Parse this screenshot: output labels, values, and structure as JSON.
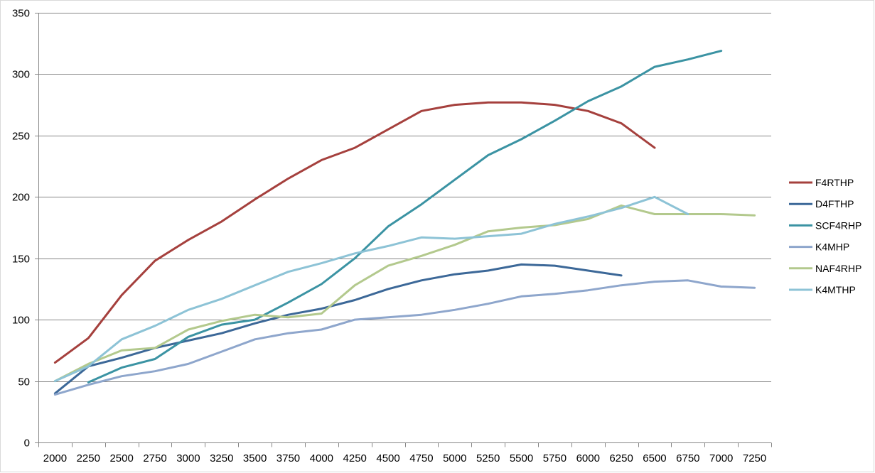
{
  "chart_data": {
    "type": "line",
    "title": "",
    "xlabel": "",
    "ylabel": "",
    "categories": [
      "2000",
      "2250",
      "2500",
      "2750",
      "3000",
      "3250",
      "3500",
      "3750",
      "4000",
      "4250",
      "4500",
      "4750",
      "5000",
      "5250",
      "5500",
      "5750",
      "6000",
      "6250",
      "6500",
      "6750",
      "7000",
      "7250"
    ],
    "ylim": [
      0,
      350
    ],
    "yticks": [
      0,
      50,
      100,
      150,
      200,
      250,
      300,
      350
    ],
    "grid": "horizontal",
    "legend_position": "right",
    "series": [
      {
        "name": "F4RTHP",
        "color": "#a5403d",
        "values": [
          65,
          85,
          120,
          148,
          165,
          180,
          198,
          215,
          230,
          240,
          255,
          270,
          275,
          277,
          277,
          275,
          270,
          260,
          240,
          null,
          null,
          null
        ]
      },
      {
        "name": "D4FTHP",
        "color": "#3c6898",
        "values": [
          40,
          62,
          69,
          77,
          83,
          89,
          97,
          104,
          109,
          116,
          125,
          132,
          137,
          140,
          145,
          144,
          140,
          136,
          null,
          null,
          null,
          null
        ]
      },
      {
        "name": "SCF4RHP",
        "color": "#3b93a3",
        "values": [
          null,
          49,
          61,
          68,
          86,
          96,
          100,
          114,
          129,
          150,
          176,
          194,
          214,
          234,
          247,
          262,
          278,
          290,
          306,
          312,
          319,
          null
        ]
      },
      {
        "name": "K4MHP",
        "color": "#8ea6cc",
        "values": [
          39,
          47,
          54,
          58,
          64,
          74,
          84,
          89,
          92,
          100,
          102,
          104,
          108,
          113,
          119,
          121,
          124,
          128,
          131,
          132,
          127,
          126
        ]
      },
      {
        "name": "NAF4RHP",
        "color": "#b3c98d",
        "values": [
          50,
          64,
          75,
          77,
          92,
          99,
          104,
          102,
          105,
          128,
          144,
          152,
          161,
          172,
          175,
          177,
          182,
          193,
          186,
          186,
          186,
          185
        ]
      },
      {
        "name": "K4MTHP",
        "color": "#8dc3d6",
        "values": [
          50,
          62,
          84,
          95,
          108,
          117,
          128,
          139,
          146,
          154,
          160,
          167,
          166,
          168,
          170,
          178,
          184,
          191,
          200,
          186,
          null,
          null
        ]
      }
    ]
  }
}
